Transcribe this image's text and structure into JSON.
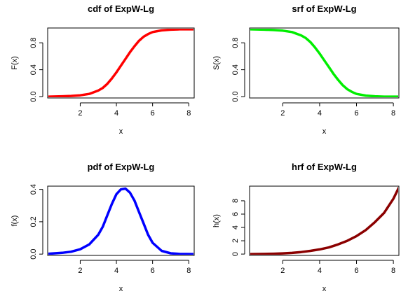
{
  "chart_data": [
    {
      "type": "line",
      "title": "cdf of ExpW-Lg",
      "xlabel": "x",
      "ylabel": "F(x)",
      "xlim": [
        0.2,
        8.3
      ],
      "ylim": [
        -0.02,
        1.02
      ],
      "x_ticks": [
        2,
        4,
        6,
        8
      ],
      "y_ticks": [
        0.0,
        0.4,
        0.8
      ],
      "x_tick_labels": [
        "2",
        "4",
        "6",
        "8"
      ],
      "y_tick_labels": [
        "0.0",
        "0.4",
        "0.8"
      ],
      "color": "#ff0000",
      "grid": false,
      "series": [
        {
          "x": [
            0.2,
            1.0,
            1.5,
            2.0,
            2.5,
            3.0,
            3.25,
            3.5,
            3.75,
            4.0,
            4.25,
            4.5,
            4.75,
            5.0,
            5.25,
            5.5,
            5.75,
            6.0,
            6.5,
            7.0,
            7.5,
            8.3
          ],
          "y": [
            0.0,
            0.005,
            0.01,
            0.02,
            0.04,
            0.09,
            0.13,
            0.19,
            0.27,
            0.36,
            0.46,
            0.56,
            0.66,
            0.75,
            0.83,
            0.89,
            0.93,
            0.96,
            0.985,
            0.995,
            1.0,
            1.0
          ]
        }
      ]
    },
    {
      "type": "line",
      "title": "srf of ExpW-Lg",
      "xlabel": "x",
      "ylabel": "S(x)",
      "xlim": [
        0.2,
        8.3
      ],
      "ylim": [
        -0.02,
        1.02
      ],
      "x_ticks": [
        2,
        4,
        6,
        8
      ],
      "y_ticks": [
        0.0,
        0.4,
        0.8
      ],
      "x_tick_labels": [
        "2",
        "4",
        "6",
        "8"
      ],
      "y_tick_labels": [
        "0.0",
        "0.4",
        "0.8"
      ],
      "color": "#00ee00",
      "grid": false,
      "series": [
        {
          "x": [
            0.2,
            1.0,
            1.5,
            2.0,
            2.5,
            3.0,
            3.25,
            3.5,
            3.75,
            4.0,
            4.25,
            4.5,
            4.75,
            5.0,
            5.25,
            5.5,
            5.75,
            6.0,
            6.5,
            7.0,
            7.5,
            8.3
          ],
          "y": [
            1.0,
            0.995,
            0.99,
            0.98,
            0.96,
            0.91,
            0.87,
            0.81,
            0.73,
            0.64,
            0.54,
            0.44,
            0.34,
            0.25,
            0.17,
            0.11,
            0.07,
            0.04,
            0.015,
            0.005,
            0.0,
            0.0
          ]
        }
      ]
    },
    {
      "type": "line",
      "title": "pdf of ExpW-Lg",
      "xlabel": "x",
      "ylabel": "f(x)",
      "xlim": [
        0.2,
        8.3
      ],
      "ylim": [
        -0.008,
        0.42
      ],
      "x_ticks": [
        2,
        4,
        6,
        8
      ],
      "y_ticks": [
        0.0,
        0.2,
        0.4
      ],
      "x_tick_labels": [
        "2",
        "4",
        "6",
        "8"
      ],
      "y_tick_labels": [
        "0.0",
        "0.2",
        "0.4"
      ],
      "color": "#0000ff",
      "grid": false,
      "series": [
        {
          "x": [
            0.2,
            1.0,
            1.5,
            2.0,
            2.5,
            3.0,
            3.25,
            3.5,
            3.75,
            4.0,
            4.25,
            4.5,
            4.75,
            5.0,
            5.25,
            5.5,
            5.75,
            6.0,
            6.5,
            7.0,
            7.5,
            8.3
          ],
          "y": [
            0.002,
            0.008,
            0.015,
            0.03,
            0.06,
            0.12,
            0.17,
            0.24,
            0.31,
            0.37,
            0.4,
            0.405,
            0.38,
            0.33,
            0.26,
            0.19,
            0.12,
            0.07,
            0.02,
            0.005,
            0.001,
            0.0
          ]
        }
      ]
    },
    {
      "type": "line",
      "title": "hrf of ExpW-Lg",
      "xlabel": "x",
      "ylabel": "h(x)",
      "xlim": [
        0.2,
        8.3
      ],
      "ylim": [
        -0.2,
        10.2
      ],
      "x_ticks": [
        2,
        4,
        6,
        8
      ],
      "y_ticks": [
        0,
        2,
        4,
        6,
        8
      ],
      "x_tick_labels": [
        "2",
        "4",
        "6",
        "8"
      ],
      "y_tick_labels": [
        "0",
        "2",
        "4",
        "6",
        "8"
      ],
      "color": "#8b0000",
      "grid": false,
      "series": [
        {
          "x": [
            0.2,
            1.0,
            1.5,
            2.0,
            2.5,
            3.0,
            3.5,
            4.0,
            4.5,
            5.0,
            5.5,
            6.0,
            6.5,
            7.0,
            7.5,
            8.0,
            8.3
          ],
          "y": [
            0.0,
            0.02,
            0.05,
            0.1,
            0.18,
            0.3,
            0.48,
            0.7,
            1.0,
            1.45,
            2.0,
            2.7,
            3.6,
            4.8,
            6.2,
            8.3,
            10.0
          ]
        }
      ]
    }
  ]
}
